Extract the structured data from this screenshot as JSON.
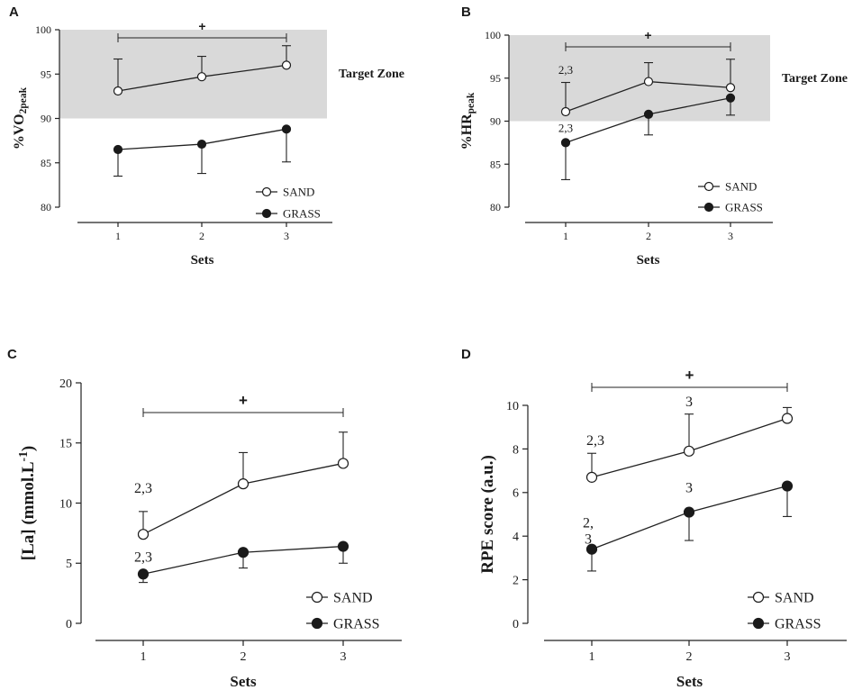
{
  "figure": {
    "background": "#ffffff",
    "target_zone_color": "#d9d9d9"
  },
  "chart_data": [
    {
      "panel": "A",
      "type": "line",
      "xlabel": "Sets",
      "ylabel": {
        "main": "%VO",
        "sub": "2peak"
      },
      "categories": [
        "1",
        "2",
        "3"
      ],
      "ylim": [
        80,
        100
      ],
      "yticks": [
        80,
        85,
        90,
        95,
        100
      ],
      "target_zone": {
        "range": [
          90,
          100
        ],
        "label": "Target Zone"
      },
      "significance": {
        "symbol": "+",
        "from": "1",
        "to": "3"
      },
      "series": [
        {
          "name": "SAND",
          "marker": "open",
          "values": [
            93.1,
            94.7,
            96.0
          ],
          "err_up": [
            3.6,
            2.3,
            2.2
          ],
          "err_down": [
            0,
            0,
            0
          ],
          "labels": [
            "",
            "",
            ""
          ]
        },
        {
          "name": "GRASS",
          "marker": "filled",
          "values": [
            86.5,
            87.1,
            88.8
          ],
          "err_up": [
            0,
            0,
            0
          ],
          "err_down": [
            3.0,
            3.3,
            3.7
          ],
          "labels": [
            "",
            "",
            ""
          ]
        }
      ],
      "legend": [
        "SAND",
        "GRASS"
      ]
    },
    {
      "panel": "B",
      "type": "line",
      "xlabel": "Sets",
      "ylabel": {
        "main": "%HR",
        "sub": "peak"
      },
      "categories": [
        "1",
        "2",
        "3"
      ],
      "ylim": [
        80,
        100
      ],
      "yticks": [
        80,
        85,
        90,
        95,
        100
      ],
      "target_zone": {
        "range": [
          90,
          100
        ],
        "label": "Target Zone"
      },
      "significance": {
        "symbol": "+",
        "from": "1",
        "to": "3"
      },
      "series": [
        {
          "name": "SAND",
          "marker": "open",
          "values": [
            91.1,
            94.6,
            93.9
          ],
          "err_up": [
            3.4,
            2.2,
            3.3
          ],
          "err_down": [
            0,
            0,
            0
          ],
          "labels": [
            "2,3",
            "",
            ""
          ]
        },
        {
          "name": "GRASS",
          "marker": "filled",
          "values": [
            87.5,
            90.8,
            92.7
          ],
          "err_up": [
            0,
            0,
            0
          ],
          "err_down": [
            4.3,
            2.4,
            2.0
          ],
          "labels": [
            "2,3",
            "",
            ""
          ]
        }
      ],
      "legend": [
        "SAND",
        "GRASS"
      ]
    },
    {
      "panel": "C",
      "type": "line",
      "xlabel": "Sets",
      "ylabel": {
        "main": "[La] (mmol.L",
        "sup": "-1",
        "end": ")"
      },
      "categories": [
        "1",
        "2",
        "3"
      ],
      "ylim": [
        0,
        20
      ],
      "yticks": [
        0,
        5,
        10,
        15,
        20
      ],
      "significance": {
        "symbol": "+",
        "from": "1",
        "to": "3"
      },
      "series": [
        {
          "name": "SAND",
          "marker": "open",
          "values": [
            7.4,
            11.6,
            13.3
          ],
          "err_up": [
            1.9,
            2.6,
            2.6
          ],
          "err_down": [
            0,
            0,
            0
          ],
          "labels": [
            "2,3",
            "",
            ""
          ]
        },
        {
          "name": "GRASS",
          "marker": "filled",
          "values": [
            4.1,
            5.9,
            6.4
          ],
          "err_up": [
            0,
            0,
            0
          ],
          "err_down": [
            0.7,
            1.3,
            1.4
          ],
          "labels": [
            "2,3",
            "",
            ""
          ]
        }
      ],
      "legend": [
        "SAND",
        "GRASS"
      ]
    },
    {
      "panel": "D",
      "type": "line",
      "xlabel": "Sets",
      "ylabel": {
        "main": "RPE score (a.u.)"
      },
      "categories": [
        "1",
        "2",
        "3"
      ],
      "ylim": [
        0,
        10
      ],
      "yticks": [
        0,
        2,
        4,
        6,
        8,
        10
      ],
      "significance": {
        "symbol": "+",
        "from": "1",
        "to": "3"
      },
      "series": [
        {
          "name": "SAND",
          "marker": "open",
          "values": [
            6.7,
            7.9,
            9.4
          ],
          "err_up": [
            1.1,
            1.7,
            0.5
          ],
          "err_down": [
            0,
            0,
            0
          ],
          "labels": [
            "2,3",
            "3",
            ""
          ]
        },
        {
          "name": "GRASS",
          "marker": "filled",
          "values": [
            3.4,
            5.1,
            6.3
          ],
          "err_up": [
            0,
            0,
            0
          ],
          "err_down": [
            1.0,
            1.3,
            1.4
          ],
          "labels": [
            "2,\n3",
            "3",
            ""
          ]
        }
      ],
      "legend": [
        "SAND",
        "GRASS"
      ]
    }
  ]
}
